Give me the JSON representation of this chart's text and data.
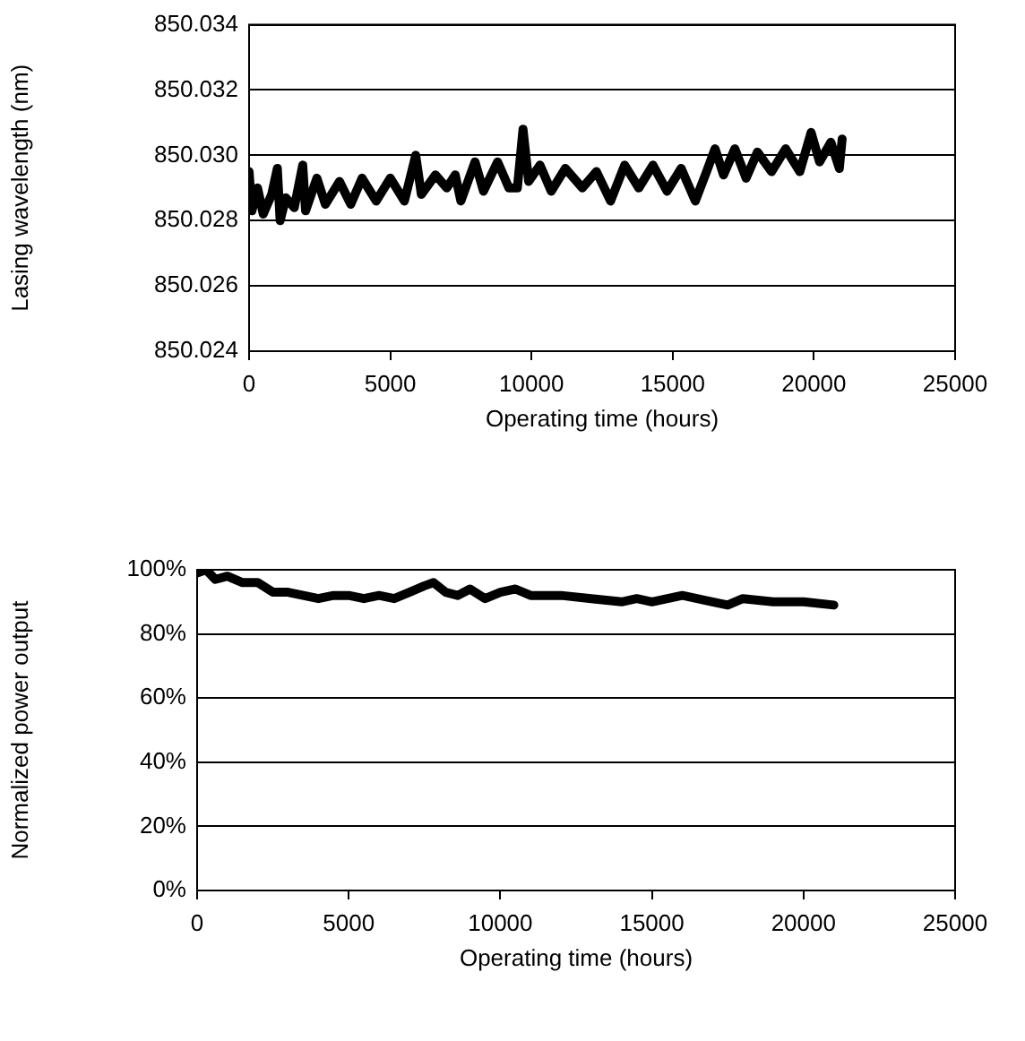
{
  "chart_data": [
    {
      "type": "line",
      "xlabel": "Operating time (hours)",
      "ylabel": "Lasing wavelength (nm)",
      "grid": "y",
      "legend": false,
      "marker": "none",
      "line_style": "solid",
      "xlim": [
        0,
        25000
      ],
      "xticks": [
        0,
        5000,
        10000,
        15000,
        20000,
        25000
      ],
      "ylim": [
        850.024,
        850.034
      ],
      "yticks": [
        850.024,
        850.026,
        850.028,
        {
          "value": 850.03,
          "label": "850.030"
        },
        850.032,
        850.034
      ],
      "series": [
        {
          "color": "#000000",
          "x": [
            0,
            100,
            300,
            500,
            800,
            1000,
            1100,
            1300,
            1600,
            1900,
            2000,
            2400,
            2700,
            3200,
            3600,
            4000,
            4500,
            5000,
            5500,
            5900,
            6100,
            6600,
            7000,
            7300,
            7500,
            8000,
            8300,
            8800,
            9200,
            9500,
            9700,
            9900,
            10300,
            10700,
            11200,
            11800,
            12300,
            12800,
            13300,
            13800,
            14300,
            14800,
            15300,
            15800,
            16200,
            16500,
            16800,
            17200,
            17600,
            18000,
            18500,
            19000,
            19500,
            19900,
            20200,
            20600,
            20900,
            21000
          ],
          "values": [
            850.0295,
            850.0283,
            850.029,
            850.0282,
            850.0288,
            850.0296,
            850.028,
            850.0287,
            850.0284,
            850.0297,
            850.0283,
            850.0293,
            850.0285,
            850.0292,
            850.0285,
            850.0293,
            850.0286,
            850.0293,
            850.0286,
            850.03,
            850.0288,
            850.0294,
            850.029,
            850.0294,
            850.0286,
            850.0298,
            850.0289,
            850.0298,
            850.029,
            850.029,
            850.0308,
            850.0292,
            850.0297,
            850.0289,
            850.0296,
            850.029,
            850.0295,
            850.0286,
            850.0297,
            850.029,
            850.0297,
            850.0289,
            850.0296,
            850.0286,
            850.0295,
            850.0302,
            850.0294,
            850.0302,
            850.0293,
            850.0301,
            850.0295,
            850.0302,
            850.0295,
            850.0307,
            850.0298,
            850.0304,
            850.0296,
            850.0305
          ]
        }
      ]
    },
    {
      "type": "line",
      "xlabel": "Operating time (hours)",
      "ylabel": "Normalized power output",
      "grid": "y",
      "legend": false,
      "marker": "none",
      "line_style": "solid",
      "xlim": [
        0,
        25000
      ],
      "xticks": [
        0,
        5000,
        10000,
        15000,
        20000,
        25000
      ],
      "ylim": [
        0,
        100
      ],
      "yticks": [
        {
          "value": 0,
          "label": "0%"
        },
        {
          "value": 20,
          "label": "20%"
        },
        {
          "value": 40,
          "label": "40%"
        },
        {
          "value": 60,
          "label": "60%"
        },
        {
          "value": 80,
          "label": "80%"
        },
        {
          "value": 100,
          "label": "100%"
        }
      ],
      "series": [
        {
          "color": "#000000",
          "x": [
            0,
            300,
            600,
            1000,
            1500,
            2000,
            2500,
            3000,
            3500,
            4000,
            4500,
            5000,
            5500,
            6000,
            6500,
            7000,
            7500,
            7800,
            8200,
            8600,
            9000,
            9500,
            10000,
            10500,
            11000,
            12000,
            13000,
            14000,
            14500,
            15000,
            16000,
            17000,
            17500,
            18000,
            19000,
            20000,
            21000
          ],
          "values": [
            99,
            100,
            97,
            98,
            96,
            96,
            93,
            93,
            92,
            91,
            92,
            92,
            91,
            92,
            91,
            93,
            95,
            96,
            93,
            92,
            94,
            91,
            93,
            94,
            92,
            92,
            91,
            90,
            91,
            90,
            92,
            90,
            89,
            91,
            90,
            90,
            89
          ]
        }
      ]
    }
  ]
}
